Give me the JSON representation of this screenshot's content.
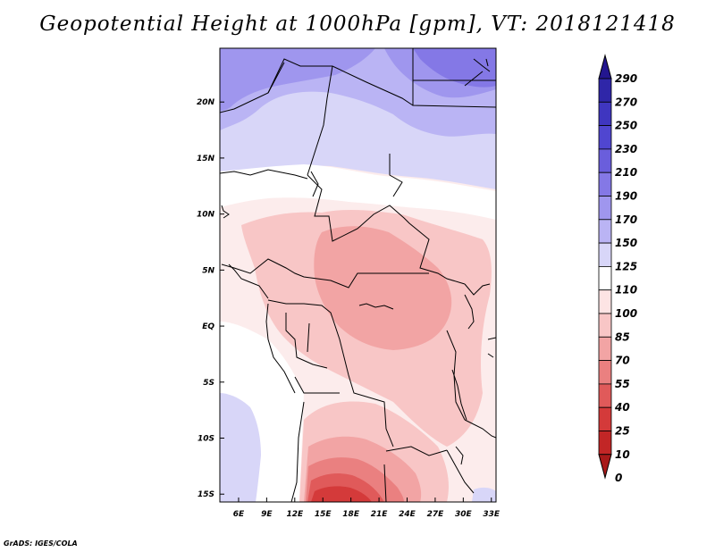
{
  "title": "Geopotential Height at 1000hPa [gpm], VT: 2018121418",
  "credit": "GrADS: IGES/COLA",
  "map": {
    "lon_ticks": [
      "6E",
      "9E",
      "12E",
      "15E",
      "18E",
      "21E",
      "24E",
      "27E",
      "30E",
      "33E"
    ],
    "lat_ticks": [
      "20N",
      "15N",
      "10N",
      "5N",
      "EQ",
      "5S",
      "10S",
      "15S"
    ],
    "extent": {
      "lon_min": 4,
      "lon_max": 33.5,
      "lat_min": -15.7,
      "lat_max": 24.8
    }
  },
  "colorbar": {
    "labels": [
      "290",
      "270",
      "250",
      "230",
      "210",
      "190",
      "170",
      "150",
      "125",
      "110",
      "100",
      "85",
      "70",
      "55",
      "40",
      "25",
      "10",
      "0"
    ],
    "colors": [
      "#23168f",
      "#2f26a8",
      "#3f36c0",
      "#5046d0",
      "#6a5edc",
      "#8478e6",
      "#9f96ee",
      "#bab4f4",
      "#d8d6f8",
      "#ffffff",
      "#fde4e4",
      "#f8c6c6",
      "#f2a4a4",
      "#ea8080",
      "#e05a5a",
      "#d43a3a",
      "#c22626",
      "#a81a1a"
    ]
  }
}
